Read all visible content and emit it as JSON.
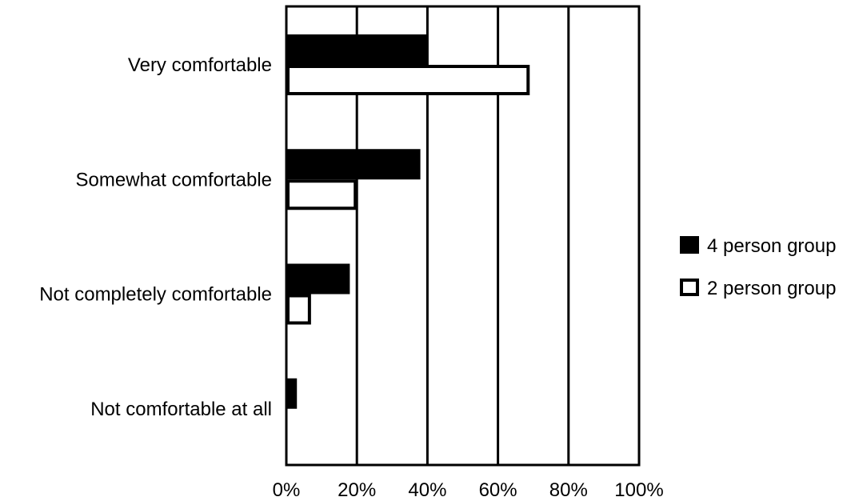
{
  "chart_data": {
    "type": "bar",
    "orientation": "horizontal",
    "title": "",
    "xlabel": "",
    "ylabel": "",
    "xlim": [
      0,
      100
    ],
    "x_ticks": [
      0,
      20,
      40,
      60,
      80,
      100
    ],
    "x_tick_labels": [
      "0%",
      "20%",
      "40%",
      "60%",
      "80%",
      "100%"
    ],
    "grid": "vertical",
    "legend_position": "right",
    "categories": [
      "Very comfortable",
      "Somewhat comfortable",
      "Not completely comfortable",
      "Not comfortable at all"
    ],
    "series": [
      {
        "name": "4 person group",
        "color": "#000000",
        "fill": "solid",
        "values": [
          40,
          38,
          18,
          3
        ]
      },
      {
        "name": "2 person group",
        "color": "#ffffff",
        "stroke": "#000000",
        "fill": "outline",
        "values": [
          69,
          20,
          7,
          0
        ]
      }
    ]
  }
}
